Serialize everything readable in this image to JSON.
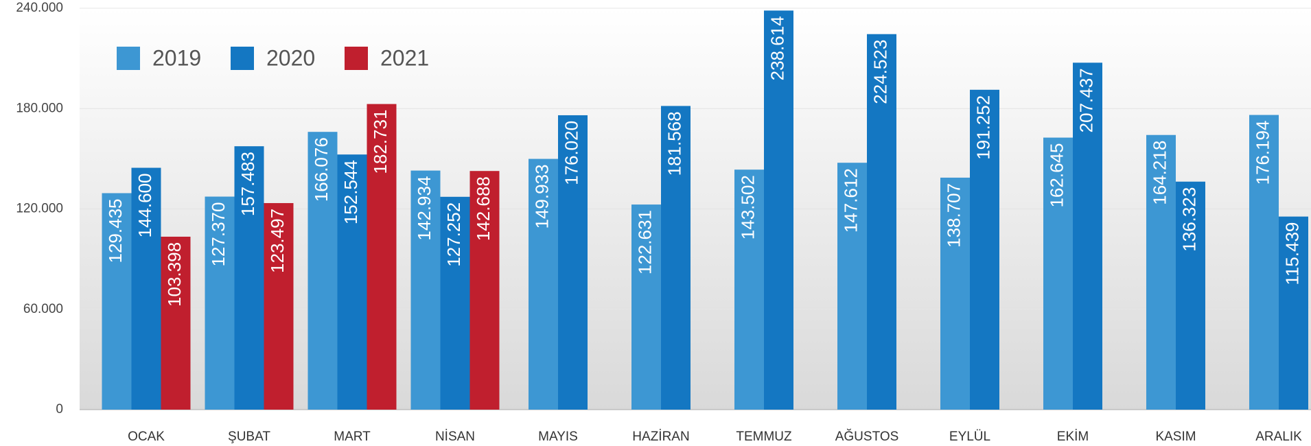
{
  "chart_data": {
    "type": "bar",
    "categories": [
      "OCAK",
      "ŞUBAT",
      "MART",
      "NİSAN",
      "MAYIS",
      "HAZİRAN",
      "TEMMUZ",
      "AĞUSTOS",
      "EYLÜL",
      "EKİM",
      "KASIM",
      "ARALIK"
    ],
    "series": [
      {
        "name": "2019",
        "color": "#3d97d3",
        "values": [
          129435,
          127370,
          166076,
          142934,
          149933,
          122631,
          143502,
          147612,
          138707,
          162645,
          164218,
          176194
        ],
        "value_labels": [
          "129.435",
          "127.370",
          "166.076",
          "142.934",
          "149.933",
          "122.631",
          "143.502",
          "147.612",
          "138.707",
          "162.645",
          "164.218",
          "176.194"
        ]
      },
      {
        "name": "2020",
        "color": "#1477c2",
        "values": [
          144600,
          157483,
          152544,
          127252,
          176020,
          181568,
          238614,
          224523,
          191252,
          207437,
          136323,
          115439
        ],
        "value_labels": [
          "144.600",
          "157.483",
          "152.544",
          "127.252",
          "176.020",
          "181.568",
          "238.614",
          "224.523",
          "191.252",
          "207.437",
          "136.323",
          "115.439"
        ]
      },
      {
        "name": "2021",
        "color": "#c01f2e",
        "values": [
          103398,
          123497,
          182731,
          142688,
          null,
          null,
          null,
          null,
          null,
          null,
          null,
          null
        ],
        "value_labels": [
          "103.398",
          "123.497",
          "182.731",
          "142.688",
          null,
          null,
          null,
          null,
          null,
          null,
          null,
          null
        ]
      }
    ],
    "ylim": [
      0,
      240000
    ],
    "yticks": [
      0,
      {
        "value": 60000,
        "label": "60.000"
      },
      {
        "value": 120000,
        "label": "120.000"
      },
      {
        "value": 180000,
        "label": "180.000"
      },
      {
        "value": 240000,
        "label": "240.000"
      }
    ],
    "grid": true,
    "legend": "top-left"
  }
}
